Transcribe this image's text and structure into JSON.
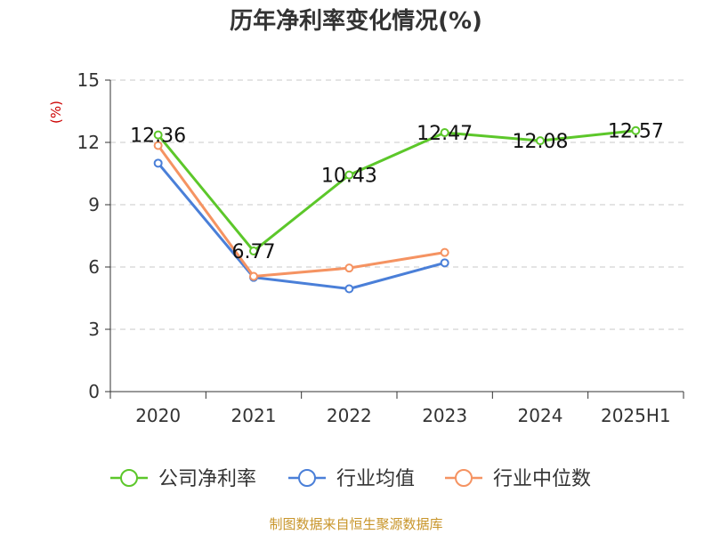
{
  "chart_data": {
    "type": "line",
    "title": "历年净利率变化情况(%)",
    "ylabel": "(%)",
    "xlabel": "",
    "categories": [
      "2020",
      "2021",
      "2022",
      "2023",
      "2024",
      "2025H1"
    ],
    "ylim": [
      0,
      15
    ],
    "yticks": [
      0,
      3,
      6,
      9,
      12,
      15
    ],
    "grid": true,
    "legend_position": "bottom",
    "series": [
      {
        "name": "公司净利率",
        "color": "#5cc72a",
        "values": [
          12.36,
          6.77,
          10.43,
          12.47,
          12.08,
          12.57
        ],
        "data_labels": [
          "12.36",
          "6.77",
          "10.43",
          "12.47",
          "12.08",
          "12.57"
        ]
      },
      {
        "name": "行业均值",
        "color": "#4a7fd8",
        "values": [
          11.0,
          5.5,
          4.95,
          6.2,
          null,
          null
        ]
      },
      {
        "name": "行业中位数",
        "color": "#f59362",
        "values": [
          11.85,
          5.55,
          5.95,
          6.7,
          null,
          null
        ]
      }
    ]
  },
  "footer": {
    "source": "制图数据来自恒生聚源数据库"
  }
}
